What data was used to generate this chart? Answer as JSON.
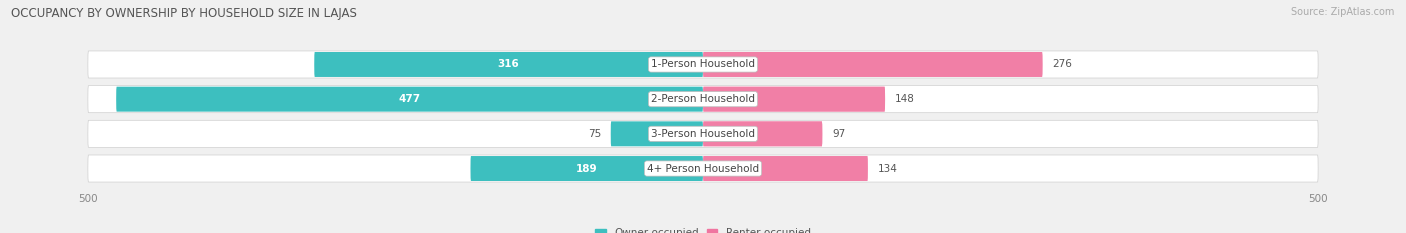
{
  "title": "OCCUPANCY BY OWNERSHIP BY HOUSEHOLD SIZE IN LAJAS",
  "source": "Source: ZipAtlas.com",
  "categories": [
    "1-Person Household",
    "2-Person Household",
    "3-Person Household",
    "4+ Person Household"
  ],
  "owner_values": [
    316,
    477,
    75,
    189
  ],
  "renter_values": [
    276,
    148,
    97,
    134
  ],
  "owner_color": "#3DBFBF",
  "renter_color": "#F075A0",
  "owner_color_light": "#A8DEDE",
  "renter_color_light": "#F9B8CE",
  "max_val": 500,
  "background_color": "#f0f0f0",
  "row_bg_color": "#e8e8e8",
  "row_bg_color2": "#f0f0f0",
  "white": "#ffffff",
  "title_fontsize": 8.5,
  "label_fontsize": 7.5,
  "value_fontsize": 7.5,
  "axis_label_fontsize": 7.5,
  "legend_fontsize": 7.5,
  "source_fontsize": 7
}
